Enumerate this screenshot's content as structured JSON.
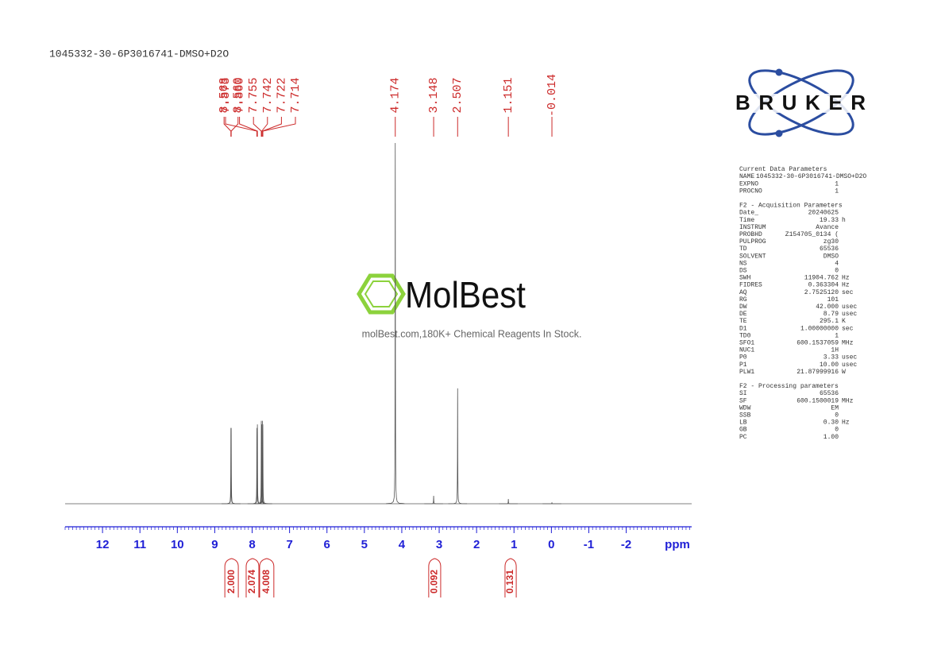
{
  "title": "1045332-30-6P3016741-DMSO+D2O",
  "logo": "BRUKER",
  "watermark": {
    "name": "MolBest",
    "tagline": "molBest.com,180K+ Chemical Reagents In Stock."
  },
  "chart_data": {
    "type": "nmr",
    "xlim": [
      13.0,
      -3.75
    ],
    "xticks": [
      12,
      11,
      10,
      9,
      8,
      7,
      6,
      5,
      4,
      3,
      2,
      1,
      0,
      -1,
      -2
    ],
    "minor_tick_step": 0.1,
    "x_label": "ppm",
    "ylim": [
      0,
      100
    ],
    "color": "#555555",
    "label_color": "#cc2a2a",
    "axis_color": "#1f1fd6",
    "peaks": {
      "x": [
        8.568,
        8.56,
        7.873,
        7.86,
        7.755,
        7.742,
        7.722,
        7.714,
        4.174,
        3.148,
        2.507,
        1.151,
        -0.014
      ],
      "x_labels": [
        "8.568",
        "8.560",
        "7.873",
        "7.860",
        "7.755",
        "7.742",
        "7.722",
        "7.714",
        "4.174",
        "3.148",
        "2.507",
        "1.151",
        "-0.014"
      ],
      "values": [
        21,
        21,
        21,
        22,
        23,
        22,
        23,
        22,
        100,
        2.2,
        32,
        1.3,
        0.3
      ]
    },
    "integrals": {
      "ranges": [
        [
          8.73,
          8.37
        ],
        [
          8.16,
          7.82
        ],
        [
          7.8,
          7.42
        ],
        [
          3.28,
          2.96
        ],
        [
          1.24,
          0.94
        ]
      ],
      "values": [
        2.0,
        2.074,
        4.008,
        0.092,
        0.131
      ],
      "value_labels": [
        "2.000",
        "2.074",
        "4.008",
        "0.092",
        "0.131"
      ]
    }
  },
  "parameters": [
    {
      "title": "Current Data Parameters",
      "rows": [
        [
          "NAME",
          "1045332-30-6P3016741-DMSO+D2O"
        ],
        [
          "EXPNO",
          "1"
        ],
        [
          "PROCNO",
          "1"
        ]
      ]
    },
    {
      "title": "F2 - Acquisition Parameters",
      "rows": [
        [
          "Date_",
          "20240625"
        ],
        [
          "Time",
          "19.33",
          "h"
        ],
        [
          "INSTRUM",
          "Avance"
        ],
        [
          "PROBHD",
          "Z154705_0134 ("
        ],
        [
          "PULPROG",
          "zg30"
        ],
        [
          "TD",
          "65536"
        ],
        [
          "SOLVENT",
          "DMSO"
        ],
        [
          "NS",
          "4"
        ],
        [
          "DS",
          "0"
        ],
        [
          "SWH",
          "11904.762",
          "Hz"
        ],
        [
          "FIDRES",
          "0.363304",
          "Hz"
        ],
        [
          "AQ",
          "2.7525120",
          "sec"
        ],
        [
          "RG",
          "101"
        ],
        [
          "DW",
          "42.000",
          "usec"
        ],
        [
          "DE",
          "8.79",
          "usec"
        ],
        [
          "TE",
          "295.1",
          "K"
        ],
        [
          "D1",
          "1.00000000",
          "sec"
        ],
        [
          "TD0",
          "1"
        ],
        [
          "SFO1",
          "600.1537059",
          "MHz"
        ],
        [
          "NUC1",
          "1H"
        ],
        [
          "P0",
          "3.33",
          "usec"
        ],
        [
          "P1",
          "10.00",
          "usec"
        ],
        [
          "PLW1",
          "21.87999916",
          "W"
        ]
      ]
    },
    {
      "title": "F2 - Processing parameters",
      "rows": [
        [
          "SI",
          "65536"
        ],
        [
          "SF",
          "600.1500019",
          "MHz"
        ],
        [
          "WDW",
          "EM"
        ],
        [
          "SSB",
          "0"
        ],
        [
          "LB",
          "0.30",
          "Hz"
        ],
        [
          "GB",
          "0"
        ],
        [
          "PC",
          "1.00"
        ]
      ]
    }
  ]
}
